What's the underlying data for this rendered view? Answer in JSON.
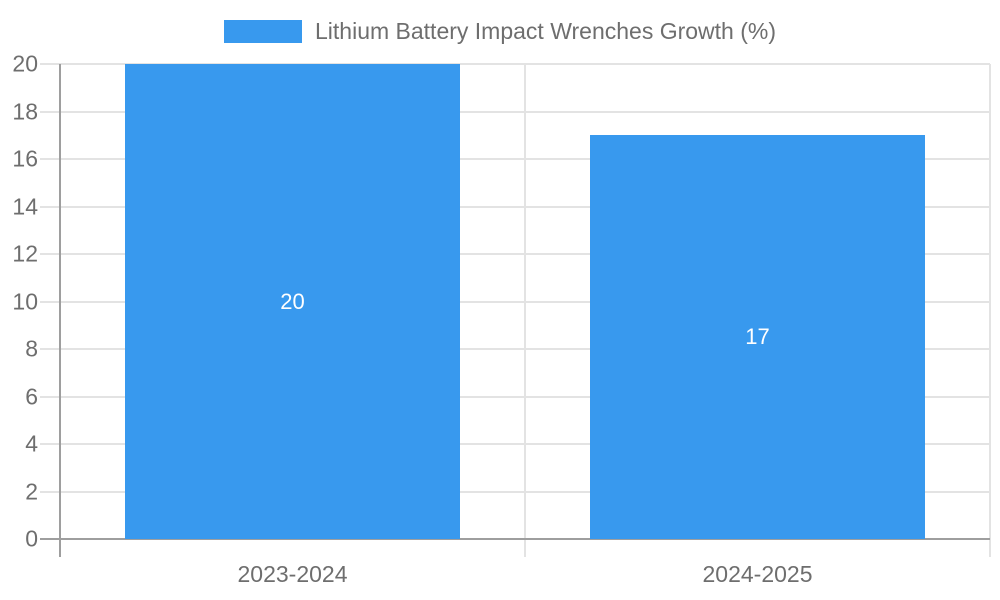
{
  "chart_data": {
    "type": "bar",
    "legend_label": "Lithium Battery Impact Wrenches Growth (%)",
    "legend_position": "top",
    "categories": [
      "2023-2024",
      "2024-2025"
    ],
    "values": [
      20,
      17
    ],
    "data_labels": [
      "20",
      "17"
    ],
    "yticks": [
      "0",
      "2",
      "4",
      "6",
      "8",
      "10",
      "12",
      "14",
      "16",
      "18",
      "20"
    ],
    "ylim": [
      0,
      20
    ],
    "grid": true,
    "colors": {
      "bar": "#3899EE",
      "grid": "#e3e3e3",
      "axis": "#9e9e9e",
      "tick_text": "#6e6e6e",
      "data_label": "#ffffff",
      "background": "#ffffff"
    }
  }
}
